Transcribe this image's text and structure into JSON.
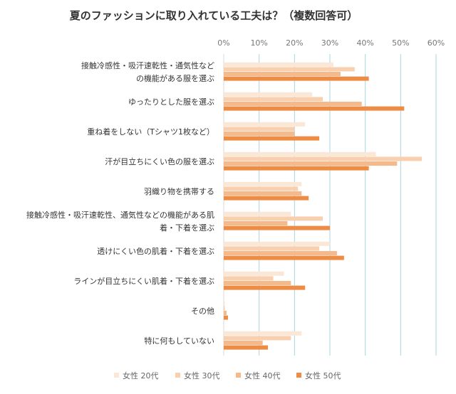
{
  "chart_data": {
    "type": "bar",
    "orientation": "horizontal",
    "title": "夏のファッションに取り入れている工夫は？（複数回答可）",
    "categories": [
      [
        "接触冷感性・吸汗速乾性・通気性など",
        "の機能がある服を選ぶ"
      ],
      [
        "ゆったりとした服を選ぶ"
      ],
      [
        "重ね着をしない（Tシャツ1枚など）"
      ],
      [
        "汗が目立ちにくい色の服を選ぶ"
      ],
      [
        "羽織り物を携帯する"
      ],
      [
        "接触冷感性・吸汗速乾性、通気性などの機能がある肌",
        "着・下着を選ぶ"
      ],
      [
        "透けにくい色の肌着・下着を選ぶ"
      ],
      [
        "ラインが目立ちにくい肌着・下着を選ぶ"
      ],
      [
        "その他"
      ],
      [
        "特に何もしていない"
      ]
    ],
    "series": [
      {
        "name": "女性 20代",
        "color": "#fbe7d6",
        "values": [
          31,
          25,
          23,
          43,
          22,
          19,
          30,
          17,
          0.3,
          22
        ]
      },
      {
        "name": "女性 30代",
        "color": "#f8d0b0",
        "values": [
          37,
          28,
          20,
          56,
          21,
          28,
          27,
          14,
          0.3,
          19
        ]
      },
      {
        "name": "女性 40代",
        "color": "#f5b98a",
        "values": [
          33,
          39,
          20,
          49,
          22,
          18,
          32,
          19,
          0.8,
          11
        ]
      },
      {
        "name": "女性 50代",
        "color": "#ec8c45",
        "values": [
          41,
          51,
          27,
          41,
          24,
          30,
          34,
          23,
          1.2,
          12.5
        ]
      }
    ],
    "xlim": [
      0,
      60
    ],
    "ticks": [
      0,
      10,
      20,
      30,
      40,
      50,
      60
    ],
    "tick_suffix": "%",
    "axis_position": "top",
    "grid": true,
    "grid_color": "#a9d5e0",
    "legend_position": "bottom"
  }
}
